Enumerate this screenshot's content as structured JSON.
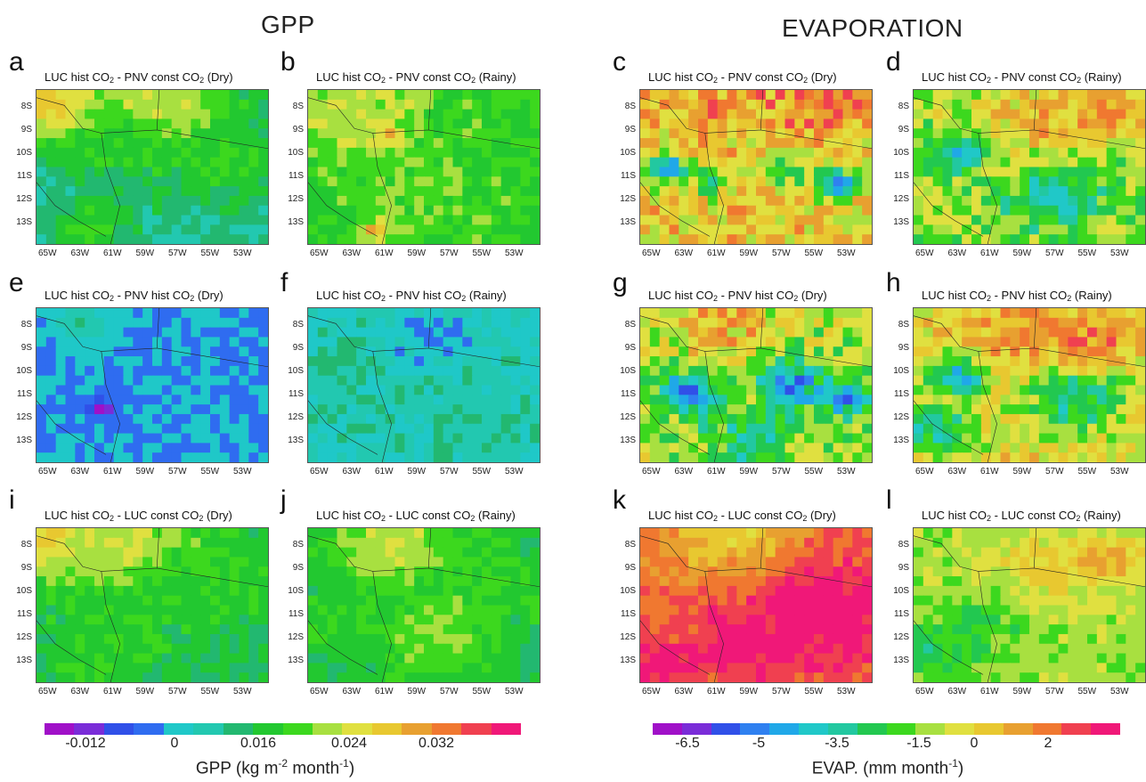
{
  "headers": {
    "gpp": "GPP",
    "evap": "EVAPORATION"
  },
  "y_ticks": [
    "8S",
    "9S",
    "10S",
    "11S",
    "12S",
    "13S"
  ],
  "x_ticks": [
    "65W",
    "63W",
    "61W",
    "59W",
    "57W",
    "55W",
    "53W"
  ],
  "panels": [
    {
      "letter": "a",
      "t1": "LUC hist CO",
      "t2": "- PNV const CO",
      "t3": "(Dry)",
      "sub": "2",
      "variable": "gpp",
      "pattern": "gpp_a"
    },
    {
      "letter": "b",
      "t1": "LUC hist CO",
      "t2": "- PNV const CO",
      "t3": "(Rainy)",
      "sub": "2",
      "variable": "gpp",
      "pattern": "gpp_b"
    },
    {
      "letter": "c",
      "t1": "LUC hist CO",
      "t2": "- PNV const CO",
      "t3": "(Dry)",
      "sub": "2",
      "variable": "evap",
      "pattern": "evap_c"
    },
    {
      "letter": "d",
      "t1": "LUC hist CO",
      "t2": "- PNV const CO",
      "t3": "(Rainy)",
      "sub": "2",
      "variable": "evap",
      "pattern": "evap_d"
    },
    {
      "letter": "e",
      "t1": "LUC hist CO",
      "t2": "- PNV hist CO",
      "t3": "(Dry)",
      "sub": "2",
      "variable": "gpp",
      "pattern": "gpp_e"
    },
    {
      "letter": "f",
      "t1": "LUC hist CO",
      "t2": "- PNV hist CO",
      "t3": "(Rainy)",
      "sub": "2",
      "variable": "gpp",
      "pattern": "gpp_f"
    },
    {
      "letter": "g",
      "t1": "LUC hist CO",
      "t2": "- PNV hist CO",
      "t3": "(Dry)",
      "sub": "2",
      "variable": "evap",
      "pattern": "evap_g"
    },
    {
      "letter": "h",
      "t1": "LUC hist CO",
      "t2": "- PNV hist CO",
      "t3": "(Rainy)",
      "sub": "2",
      "variable": "evap",
      "pattern": "evap_h"
    },
    {
      "letter": "i",
      "t1": "LUC hist CO",
      "t2": "- LUC const CO",
      "t3": "(Dry)",
      "sub": "2",
      "variable": "gpp",
      "pattern": "gpp_i"
    },
    {
      "letter": "j",
      "t1": "LUC hist CO",
      "t2": "- LUC const CO",
      "t3": "(Rainy)",
      "sub": "2",
      "variable": "gpp",
      "pattern": "gpp_j"
    },
    {
      "letter": "k",
      "t1": "LUC hist CO",
      "t2": "- LUC const CO",
      "t3": "(Dry)",
      "sub": "2",
      "variable": "evap",
      "pattern": "evap_k"
    },
    {
      "letter": "l",
      "t1": "LUC hist CO",
      "t2": "- LUC const CO",
      "t3": "(Rainy)",
      "sub": "2",
      "variable": "evap",
      "pattern": "evap_l"
    }
  ],
  "colorbars": {
    "gpp": {
      "colors": [
        "#a010c8",
        "#7a2cd8",
        "#3050e8",
        "#2f6cf0",
        "#1fc8c8",
        "#22c8b0",
        "#22b870",
        "#22c830",
        "#3cd81e",
        "#a8e040",
        "#e0e040",
        "#e8c830",
        "#e8a030",
        "#f07830",
        "#f04050",
        "#f01878"
      ],
      "ticks": [
        "-0.012",
        "0",
        "0.016",
        "0.024",
        "0.032"
      ],
      "label_main": "GPP (kg m",
      "label_sup1": "-2",
      "label_mid": " month",
      "label_sup2": "-1",
      "label_end": ")"
    },
    "evap": {
      "colors": [
        "#a010c8",
        "#7a2cd8",
        "#3050e8",
        "#2f80f0",
        "#20a8e8",
        "#20c8c8",
        "#22c8a0",
        "#22c850",
        "#3cd81e",
        "#a8e040",
        "#e0e040",
        "#e8c830",
        "#e8a030",
        "#f07830",
        "#f04050",
        "#f01878"
      ],
      "ticks": [
        "-6.5",
        "-5",
        "-3.5",
        "-1.5",
        "0",
        "2"
      ],
      "label_main": "EVAP. (mm month",
      "label_sup1": "-1",
      "label_end": ")"
    }
  },
  "chart_data": [
    {
      "type": "heatmap",
      "panel": "a",
      "variable": "GPP",
      "title": "LUC hist CO2 - PNV const CO2 (Dry)",
      "dominant_values_kg_m2_month": [
        0.024,
        0.016,
        0.008
      ],
      "x_ticks": [
        "65W",
        "63W",
        "61W",
        "59W",
        "57W",
        "55W",
        "53W"
      ],
      "y_ticks": [
        "8S",
        "9S",
        "10S",
        "11S",
        "12S",
        "13S"
      ]
    },
    {
      "type": "heatmap",
      "panel": "b",
      "variable": "GPP",
      "title": "LUC hist CO2 - PNV const CO2 (Rainy)",
      "dominant_values_kg_m2_month": [
        0.024,
        0.016,
        0.032
      ]
    },
    {
      "type": "heatmap",
      "panel": "c",
      "variable": "EVAP",
      "title": "LUC hist CO2 - PNV const CO2 (Dry)",
      "dominant_values_mm_month": [
        2,
        0,
        -3.5,
        -5
      ]
    },
    {
      "type": "heatmap",
      "panel": "d",
      "variable": "EVAP",
      "title": "LUC hist CO2 - PNV const CO2 (Rainy)",
      "dominant_values_mm_month": [
        0,
        -1.5,
        2,
        -5
      ]
    },
    {
      "type": "heatmap",
      "panel": "e",
      "variable": "GPP",
      "title": "LUC hist CO2 - PNV hist CO2 (Dry)",
      "dominant_values_kg_m2_month": [
        0,
        0.008,
        -0.012
      ]
    },
    {
      "type": "heatmap",
      "panel": "f",
      "variable": "GPP",
      "title": "LUC hist CO2 - PNV hist CO2 (Rainy)",
      "dominant_values_kg_m2_month": [
        0.008,
        0
      ]
    },
    {
      "type": "heatmap",
      "panel": "g",
      "variable": "EVAP",
      "title": "LUC hist CO2 - PNV hist CO2 (Dry)",
      "dominant_values_mm_month": [
        0,
        -1.5,
        -3.5,
        -6.5
      ]
    },
    {
      "type": "heatmap",
      "panel": "h",
      "variable": "EVAP",
      "title": "LUC hist CO2 - PNV hist CO2 (Rainy)",
      "dominant_values_mm_month": [
        0,
        2,
        -1.5,
        -5
      ]
    },
    {
      "type": "heatmap",
      "panel": "i",
      "variable": "GPP",
      "title": "LUC hist CO2 - LUC const CO2 (Dry)",
      "dominant_values_kg_m2_month": [
        0.024,
        0.016,
        0.008,
        0.032
      ]
    },
    {
      "type": "heatmap",
      "panel": "j",
      "variable": "GPP",
      "title": "LUC hist CO2 - LUC const CO2 (Rainy)",
      "dominant_values_kg_m2_month": [
        0.024,
        0.016,
        0.008
      ]
    },
    {
      "type": "heatmap",
      "panel": "k",
      "variable": "EVAP",
      "title": "LUC hist CO2 - LUC const CO2 (Dry)",
      "dominant_values_mm_month": [
        2,
        4,
        0
      ]
    },
    {
      "type": "heatmap",
      "panel": "l",
      "variable": "EVAP",
      "title": "LUC hist CO2 - LUC const CO2 (Rainy)",
      "dominant_values_mm_month": [
        0,
        -1.5,
        2
      ]
    }
  ]
}
